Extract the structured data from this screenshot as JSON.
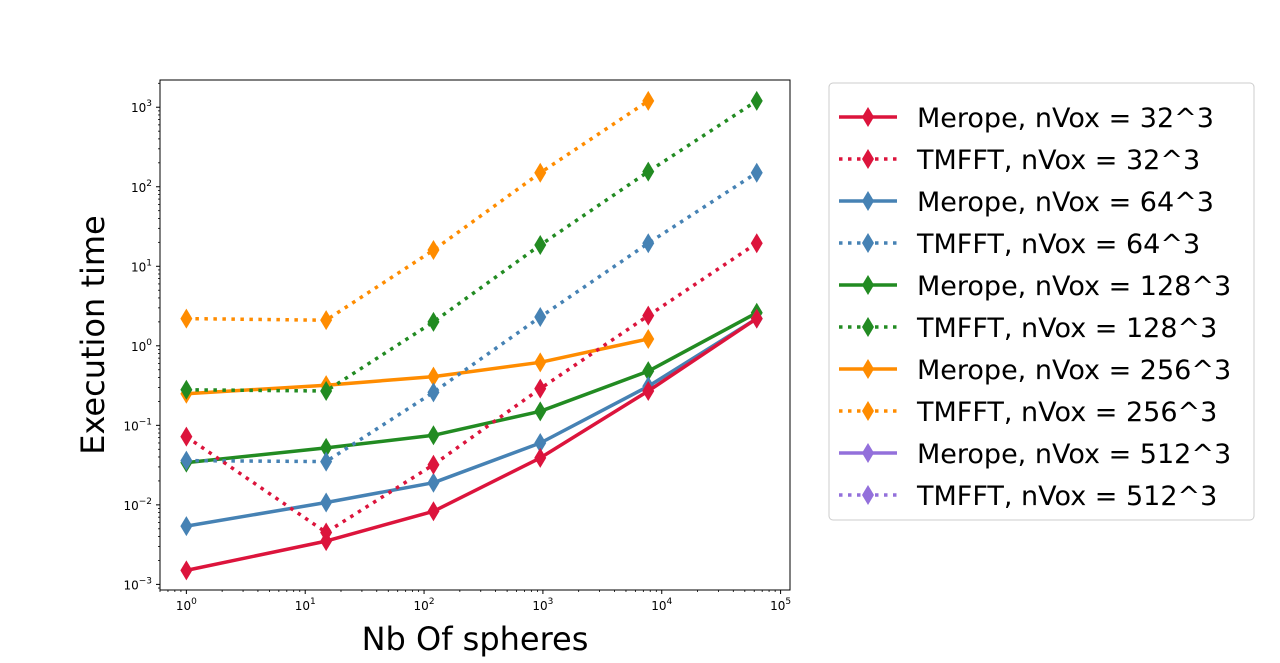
{
  "chart_data": {
    "type": "line",
    "xscale": "log",
    "yscale": "log",
    "xlabel": "Nb Of spheres",
    "ylabel": "Execution time",
    "xlim": [
      0.6,
      120000
    ],
    "ylim": [
      0.00085,
      2200
    ],
    "x_ticks": [
      {
        "value": 1,
        "base": "10",
        "exp": "0"
      },
      {
        "value": 10,
        "base": "10",
        "exp": "1"
      },
      {
        "value": 100,
        "base": "10",
        "exp": "2"
      },
      {
        "value": 1000,
        "base": "10",
        "exp": "3"
      },
      {
        "value": 10000,
        "base": "10",
        "exp": "4"
      },
      {
        "value": 100000,
        "base": "10",
        "exp": "5"
      }
    ],
    "y_ticks": [
      {
        "value": 0.001,
        "base": "10",
        "exp": "−3"
      },
      {
        "value": 0.01,
        "base": "10",
        "exp": "−2"
      },
      {
        "value": 0.1,
        "base": "10",
        "exp": "−1"
      },
      {
        "value": 1,
        "base": "10",
        "exp": "0"
      },
      {
        "value": 10,
        "base": "10",
        "exp": "1"
      },
      {
        "value": 100,
        "base": "10",
        "exp": "2"
      },
      {
        "value": 1000,
        "base": "10",
        "exp": "3"
      }
    ],
    "legend_position": "outside-right",
    "series": [
      {
        "name": "Merope, nVox = 32^3",
        "color": "#dc143c",
        "style": "solid",
        "x": [
          1,
          15,
          120,
          950,
          7700,
          63000
        ],
        "y": [
          0.0015,
          0.0035,
          0.0083,
          0.039,
          0.27,
          2.2
        ]
      },
      {
        "name": "TMFFT, nVox = 32^3",
        "color": "#dc143c",
        "style": "dotted",
        "x": [
          1,
          15,
          120,
          950,
          7700,
          63000
        ],
        "y": [
          0.072,
          0.0045,
          0.032,
          0.29,
          2.4,
          19.5
        ]
      },
      {
        "name": "Merope, nVox = 64^3",
        "color": "#4682b4",
        "style": "solid",
        "x": [
          1,
          15,
          120,
          950,
          7700,
          63000
        ],
        "y": [
          0.0054,
          0.0107,
          0.019,
          0.06,
          0.31,
          2.2
        ]
      },
      {
        "name": "TMFFT, nVox = 64^3",
        "color": "#4682b4",
        "style": "dotted",
        "x": [
          1,
          15,
          120,
          950,
          7700,
          63000
        ],
        "y": [
          0.036,
          0.035,
          0.26,
          2.3,
          19.5,
          150
        ]
      },
      {
        "name": "Merope, nVox = 128^3",
        "color": "#228b22",
        "style": "solid",
        "x": [
          1,
          15,
          120,
          950,
          7700,
          63000
        ],
        "y": [
          0.034,
          0.052,
          0.075,
          0.15,
          0.48,
          2.6
        ]
      },
      {
        "name": "TMFFT, nVox = 128^3",
        "color": "#228b22",
        "style": "dotted",
        "x": [
          1,
          15,
          120,
          950,
          7700,
          63000
        ],
        "y": [
          0.28,
          0.27,
          2.0,
          18.5,
          155,
          1200
        ]
      },
      {
        "name": "Merope, nVox = 256^3",
        "color": "#ff8c00",
        "style": "solid",
        "x": [
          1,
          15,
          120,
          950,
          7700
        ],
        "y": [
          0.25,
          0.32,
          0.41,
          0.62,
          1.22
        ]
      },
      {
        "name": "TMFFT, nVox = 256^3",
        "color": "#ff8c00",
        "style": "dotted",
        "x": [
          1,
          15,
          120,
          950,
          7700
        ],
        "y": [
          2.2,
          2.1,
          16,
          150,
          1200
        ]
      },
      {
        "name": "Merope, nVox = 512^3",
        "color": "#9370db",
        "style": "solid",
        "x": [],
        "y": []
      },
      {
        "name": "TMFFT, nVox = 512^3",
        "color": "#9370db",
        "style": "dotted",
        "x": [],
        "y": []
      }
    ]
  }
}
